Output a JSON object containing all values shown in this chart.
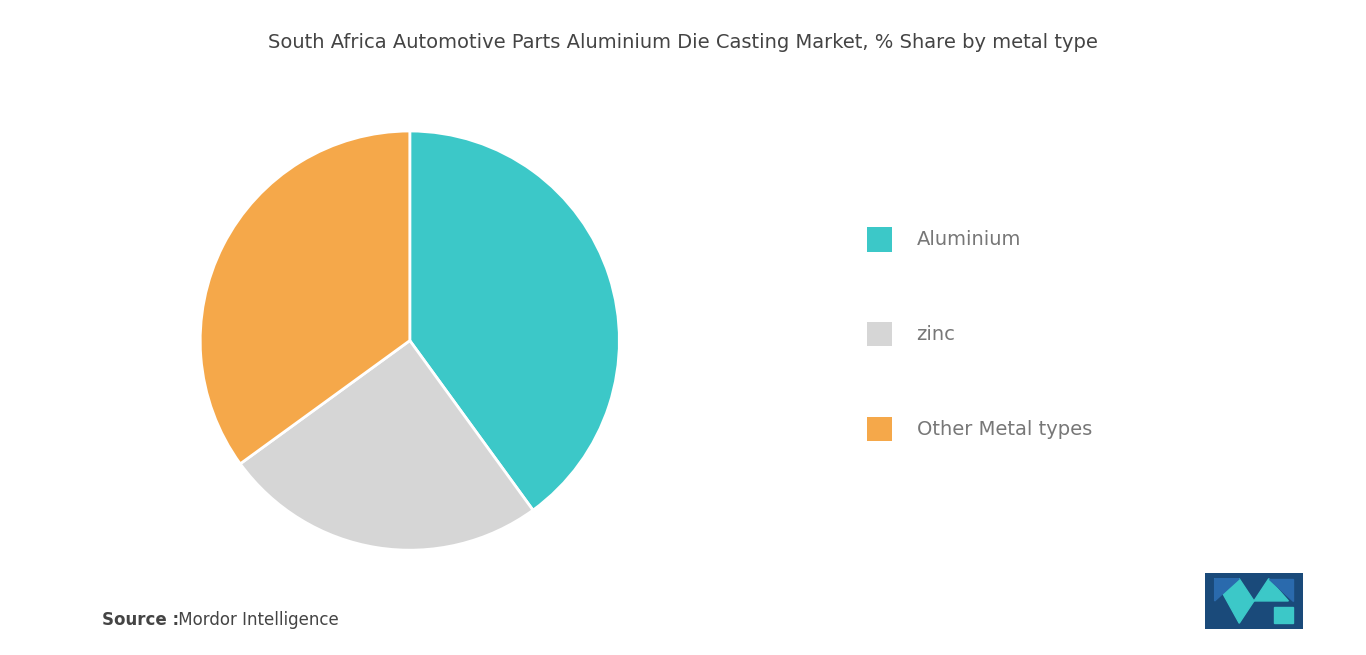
{
  "title": "South Africa Automotive Parts Aluminium Die Casting Market, % Share by metal type",
  "slices": [
    {
      "label": "Aluminium",
      "value": 40,
      "color": "#3cc8c8"
    },
    {
      "label": "zinc",
      "value": 25,
      "color": "#d6d6d6"
    },
    {
      "label": "Other Metal types",
      "value": 35,
      "color": "#f5a84a"
    }
  ],
  "legend_labels": [
    "Aluminium",
    "zinc",
    "Other Metal types"
  ],
  "legend_colors": [
    "#3cc8c8",
    "#d6d6d6",
    "#f5a84a"
  ],
  "source_bold": "Source :",
  "source_normal": " Mordor Intelligence",
  "background_color": "#ffffff",
  "title_fontsize": 14,
  "legend_fontsize": 14,
  "source_fontsize": 12,
  "startangle": 90
}
